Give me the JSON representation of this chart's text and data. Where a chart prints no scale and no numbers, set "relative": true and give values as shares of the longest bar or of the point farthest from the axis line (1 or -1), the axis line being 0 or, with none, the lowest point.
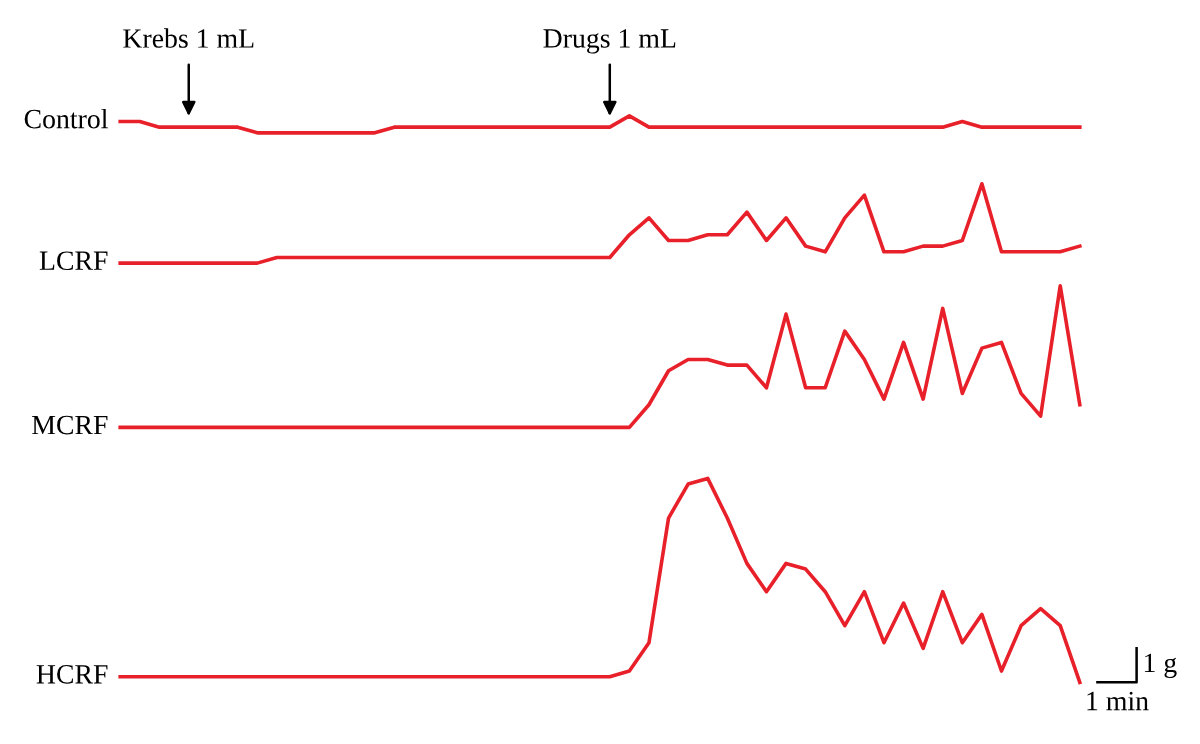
{
  "chart_data": {
    "type": "line",
    "relative": true,
    "categories": [
      null,
      null,
      null,
      null,
      null,
      null,
      null,
      null,
      null,
      null,
      null,
      null,
      null,
      null,
      null,
      null,
      null,
      null,
      null,
      null,
      null,
      null,
      null,
      null,
      null,
      null,
      null,
      null,
      null,
      null,
      null,
      null,
      null,
      null,
      null,
      null,
      null,
      null,
      null,
      null,
      null,
      null,
      null,
      null,
      null,
      null,
      null,
      null,
      null,
      null
    ],
    "series": [
      {
        "name": "Control",
        "color": "#e8202a",
        "values": [
          0.99,
          0.99,
          0.98,
          0.98,
          0.98,
          0.98,
          0.98,
          0.97,
          0.97,
          0.97,
          0.97,
          0.97,
          0.97,
          0.97,
          0.98,
          0.98,
          0.98,
          0.98,
          0.98,
          0.98,
          0.98,
          0.98,
          0.98,
          0.98,
          0.98,
          0.98,
          1,
          0.98,
          0.98,
          0.98,
          0.98,
          0.98,
          0.98,
          0.98,
          0.98,
          0.98,
          0.98,
          0.98,
          0.98,
          0.98,
          0.98,
          0.98,
          0.98,
          0.99,
          0.98,
          0.98,
          0.98,
          0.98,
          0.98,
          0.98
        ]
      },
      {
        "name": "LCRF",
        "color": "#e8202a",
        "values": [
          0.74,
          0.74,
          0.74,
          0.74,
          0.74,
          0.74,
          0.74,
          0.74,
          0.75,
          0.75,
          0.75,
          0.75,
          0.75,
          0.75,
          0.75,
          0.75,
          0.75,
          0.75,
          0.75,
          0.75,
          0.75,
          0.75,
          0.75,
          0.75,
          0.75,
          0.75,
          0.79,
          0.82,
          0.78,
          0.78,
          0.79,
          0.79,
          0.83,
          0.78,
          0.82,
          0.77,
          0.76,
          0.82,
          0.86,
          0.76,
          0.76,
          0.77,
          0.77,
          0.78,
          0.88,
          0.76,
          0.76,
          0.76,
          0.76,
          0.77
        ]
      },
      {
        "name": "MCRF",
        "color": "#e8202a",
        "values": [
          0.45,
          0.45,
          0.45,
          0.45,
          0.45,
          0.45,
          0.45,
          0.45,
          0.45,
          0.45,
          0.45,
          0.45,
          0.45,
          0.45,
          0.45,
          0.45,
          0.45,
          0.45,
          0.45,
          0.45,
          0.45,
          0.45,
          0.45,
          0.45,
          0.45,
          0.45,
          0.45,
          0.49,
          0.55,
          0.57,
          0.57,
          0.56,
          0.56,
          0.52,
          0.65,
          0.52,
          0.52,
          0.62,
          0.57,
          0.5,
          0.6,
          0.5,
          0.66,
          0.51,
          0.59,
          0.6,
          0.51,
          0.47,
          0.7,
          0.49
        ]
      },
      {
        "name": "HCRF",
        "color": "#e8202a",
        "values": [
          0.01,
          0.01,
          0.01,
          0.01,
          0.01,
          0.01,
          0.01,
          0.01,
          0.01,
          0.01,
          0.01,
          0.01,
          0.01,
          0.01,
          0.01,
          0.01,
          0.01,
          0.01,
          0.01,
          0.01,
          0.01,
          0.01,
          0.01,
          0.01,
          0.01,
          0.01,
          0.02,
          0.07,
          0.29,
          0.35,
          0.36,
          0.29,
          0.21,
          0.16,
          0.21,
          0.2,
          0.16,
          0.1,
          0.16,
          0.07,
          0.14,
          0.06,
          0.16,
          0.07,
          0.12,
          0.02,
          0.1,
          0.13,
          0.1,
          0
        ]
      }
    ],
    "annotations": [
      "Krebs 1 mL",
      "Drugs 1 mL",
      "1 g",
      "1 min"
    ]
  }
}
